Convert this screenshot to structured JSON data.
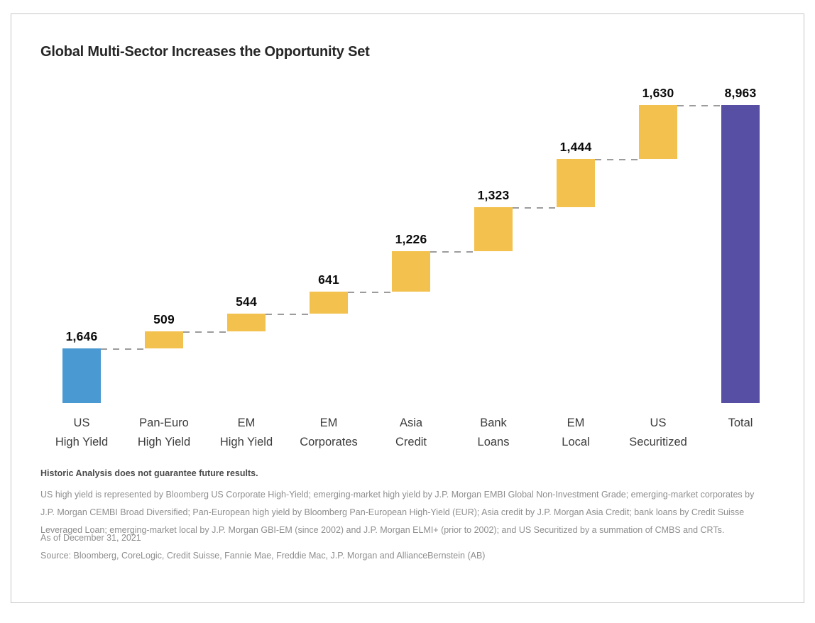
{
  "title": "Global Multi-Sector Increases the Opportunity Set",
  "chart_data": {
    "type": "bar",
    "subtype": "waterfall",
    "title": "Global Multi-Sector Increases the Opportunity Set",
    "categories": [
      "US High Yield",
      "Pan-Euro High Yield",
      "EM High Yield",
      "EM Corporates",
      "Asia Credit",
      "Bank Loans",
      "EM Local",
      "US Securitized",
      "Total"
    ],
    "category_lines": [
      [
        "US",
        "High Yield"
      ],
      [
        "Pan-Euro",
        "High Yield"
      ],
      [
        "EM",
        "High Yield"
      ],
      [
        "EM",
        "Corporates"
      ],
      [
        "Asia",
        "Credit"
      ],
      [
        "Bank",
        "Loans"
      ],
      [
        "EM",
        "Local"
      ],
      [
        "US",
        "Securitized"
      ],
      [
        "Total"
      ]
    ],
    "values": [
      1646,
      509,
      544,
      641,
      1226,
      1323,
      1444,
      1630,
      8963
    ],
    "value_labels": [
      "1,646",
      "509",
      "544",
      "641",
      "1,226",
      "1,323",
      "1,444",
      "1,630",
      "8,963"
    ],
    "bar_roles": [
      "start",
      "increment",
      "increment",
      "increment",
      "increment",
      "increment",
      "increment",
      "increment",
      "total"
    ],
    "cumulative": [
      1646,
      2155,
      2699,
      3340,
      4566,
      5889,
      7333,
      8963,
      8963
    ],
    "colors": {
      "start": "#4a99d2",
      "increment": "#f3c14d",
      "total": "#564fa4",
      "connector": "#9c9c9c"
    },
    "xlabel": "",
    "ylabel": "",
    "ylim": [
      0,
      8963
    ],
    "grid": false,
    "legend": false,
    "connector_style": "dashed"
  },
  "footnotes": {
    "disclaimer": "Historic Analysis does not guarantee future results.",
    "description": "US high yield is represented by Bloomberg US Corporate High-Yield; emerging-market high yield by J.P. Morgan EMBI Global Non-Investment Grade; emerging-market corporates by J.P. Morgan CEMBI Broad Diversified; Pan-European high yield by Bloomberg Pan-European High-Yield (EUR); Asia credit by J.P. Morgan Asia Credit; bank loans by Credit Suisse Leveraged Loan; emerging-market local by J.P. Morgan GBI-EM (since 2002) and J.P. Morgan ELMI+ (prior to 2002); and US Securitized by a summation of CMBS and CRTs.",
    "as_of": "As of December 31, 2021",
    "source": "Source: Bloomberg, CoreLogic, Credit Suisse, Fannie Mae, Freddie Mac, J.P. Morgan and AllianceBernstein (AB)"
  }
}
